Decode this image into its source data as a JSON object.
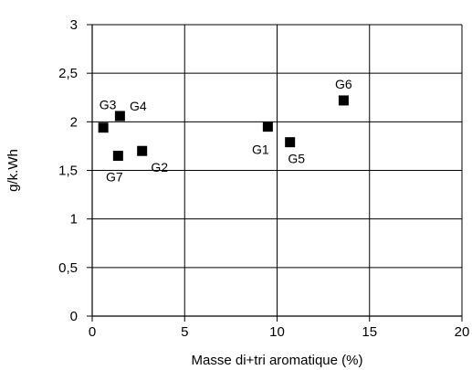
{
  "chart_data": {
    "type": "scatter",
    "title": "",
    "xlabel": "Masse di+tri aromatique (%)",
    "ylabel": "g/k.Wh",
    "xlim": [
      0,
      20
    ],
    "ylim": [
      0,
      3
    ],
    "xticks": [
      0,
      5,
      10,
      15,
      20
    ],
    "yticks": [
      0,
      0.5,
      1,
      1.5,
      2,
      2.5,
      3
    ],
    "xtick_labels": [
      "0",
      "5",
      "10",
      "15",
      "20"
    ],
    "ytick_labels": [
      "0",
      "0,5",
      "1",
      "1,5",
      "2",
      "2,5",
      "3"
    ],
    "grid": true,
    "marker": "square",
    "marker_color": "#000000",
    "points": [
      {
        "label": "G1",
        "x": 9.5,
        "y": 1.95
      },
      {
        "label": "G2",
        "x": 2.7,
        "y": 1.7
      },
      {
        "label": "G3",
        "x": 0.6,
        "y": 1.94
      },
      {
        "label": "G4",
        "x": 1.5,
        "y": 2.06
      },
      {
        "label": "G5",
        "x": 10.7,
        "y": 1.79
      },
      {
        "label": "G6",
        "x": 13.6,
        "y": 2.22
      },
      {
        "label": "G7",
        "x": 1.4,
        "y": 1.65
      }
    ]
  }
}
